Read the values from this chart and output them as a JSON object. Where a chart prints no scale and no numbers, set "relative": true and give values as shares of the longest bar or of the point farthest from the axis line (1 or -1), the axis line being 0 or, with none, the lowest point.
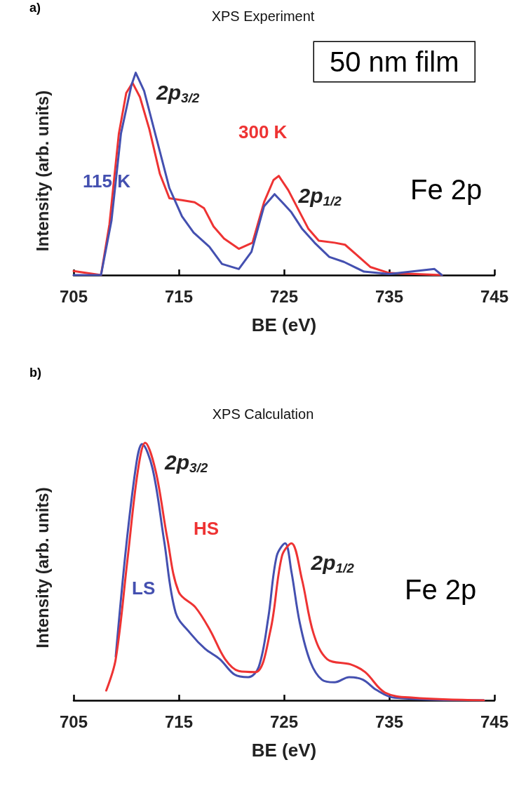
{
  "chart_data": [
    {
      "type": "line",
      "title": "XPS Experiment",
      "xlabel": "BE (eV)",
      "ylabel": "Intensity (arb. units)",
      "relative": true,
      "xlim": [
        705,
        745
      ],
      "xticks": [
        705,
        715,
        725,
        735,
        745
      ],
      "marker": "none",
      "line_style": "solid",
      "legend": false,
      "grid": false,
      "annotations": [
        "a)",
        "50 nm film",
        "Fe 2p",
        {
          "text": "2p$_{3/2}$",
          "x": 711,
          "y": 1.0
        },
        {
          "text": "2p$_{1/2}$",
          "x": 724.5,
          "y": 0.49
        }
      ],
      "series": [
        {
          "name": "300 K",
          "color": "#ee3333",
          "x": [
            705,
            707.6,
            708.4,
            709.3,
            710.0,
            710.6,
            711.3,
            712.2,
            713.2,
            714.1,
            715.3,
            716.5,
            717.4,
            718.3,
            719.3,
            720.7,
            722,
            723.1,
            724,
            724.5,
            725.4,
            726.3,
            727.3,
            728.3,
            729.8,
            730.8,
            731.9,
            733.2,
            735,
            740
          ],
          "values": [
            0.02,
            0.0,
            0.25,
            0.7,
            0.9,
            0.95,
            0.88,
            0.72,
            0.5,
            0.38,
            0.37,
            0.36,
            0.33,
            0.24,
            0.18,
            0.13,
            0.16,
            0.36,
            0.47,
            0.49,
            0.42,
            0.33,
            0.23,
            0.17,
            0.16,
            0.15,
            0.1,
            0.04,
            0.01,
            0.0
          ]
        },
        {
          "name": "115 K",
          "color": "#4450b0",
          "x": [
            705,
            707.6,
            708.6,
            709.5,
            710.5,
            710.9,
            711.7,
            712.6,
            714.1,
            715.3,
            716.4,
            717.9,
            719.1,
            720.7,
            721.9,
            723.1,
            724.1,
            725,
            725.7,
            726.7,
            727.9,
            729.3,
            730.7,
            732.6,
            735,
            739.3,
            740
          ],
          "values": [
            0.0,
            0.0,
            0.27,
            0.7,
            0.94,
            1.0,
            0.91,
            0.73,
            0.43,
            0.29,
            0.21,
            0.14,
            0.055,
            0.03,
            0.115,
            0.34,
            0.4,
            0.35,
            0.31,
            0.23,
            0.16,
            0.09,
            0.065,
            0.017,
            0.005,
            0.03,
            0.0
          ]
        }
      ]
    },
    {
      "type": "line",
      "title": "XPS Calculation",
      "xlabel": "BE (eV)",
      "ylabel": "Intensity (arb. units)",
      "relative": true,
      "xlim": [
        705,
        745
      ],
      "xticks": [
        705,
        715,
        725,
        735,
        745
      ],
      "marker": "none",
      "line_style": "solid",
      "legend": false,
      "grid": false,
      "annotations": [
        "b)",
        "Fe 2p",
        {
          "text": "2p$_{3/2}$",
          "x": 711.8,
          "y": 1.0
        },
        {
          "text": "2p$_{1/2}$",
          "x": 725.7,
          "y": 0.61
        }
      ],
      "series": [
        {
          "name": "LS",
          "color": "#4450b0",
          "x": [
            709,
            710,
            711,
            711.5,
            712.5,
            713.6,
            714.7,
            716.1,
            717.5,
            718.9,
            720.3,
            721.6,
            722.6,
            723.5,
            724.3,
            725.1,
            725.7,
            726.5,
            727.5,
            728.6,
            729.8,
            731.2,
            732.5,
            733.8,
            735.5,
            744
          ],
          "values": [
            0.17,
            0.6,
            0.93,
            0.995,
            0.9,
            0.62,
            0.34,
            0.26,
            0.2,
            0.16,
            0.1,
            0.09,
            0.13,
            0.32,
            0.56,
            0.61,
            0.5,
            0.3,
            0.15,
            0.08,
            0.07,
            0.09,
            0.08,
            0.04,
            0.01,
            0.0
          ]
        },
        {
          "name": "HS",
          "color": "#ee3333",
          "x": [
            708.1,
            709.0,
            710.1,
            711.1,
            711.8,
            712.8,
            713.9,
            715,
            716.6,
            718,
            719.4,
            720.7,
            722.3,
            723.7,
            724.8,
            725.7,
            726.7,
            727.8,
            729.1,
            731.3,
            732.7,
            734.6,
            737.3,
            744
          ],
          "values": [
            0.038,
            0.16,
            0.54,
            0.89,
            1.0,
            0.89,
            0.63,
            0.42,
            0.36,
            0.27,
            0.16,
            0.114,
            0.11,
            0.27,
            0.56,
            0.61,
            0.47,
            0.26,
            0.16,
            0.14,
            0.11,
            0.03,
            0.01,
            0.0
          ]
        }
      ]
    }
  ]
}
